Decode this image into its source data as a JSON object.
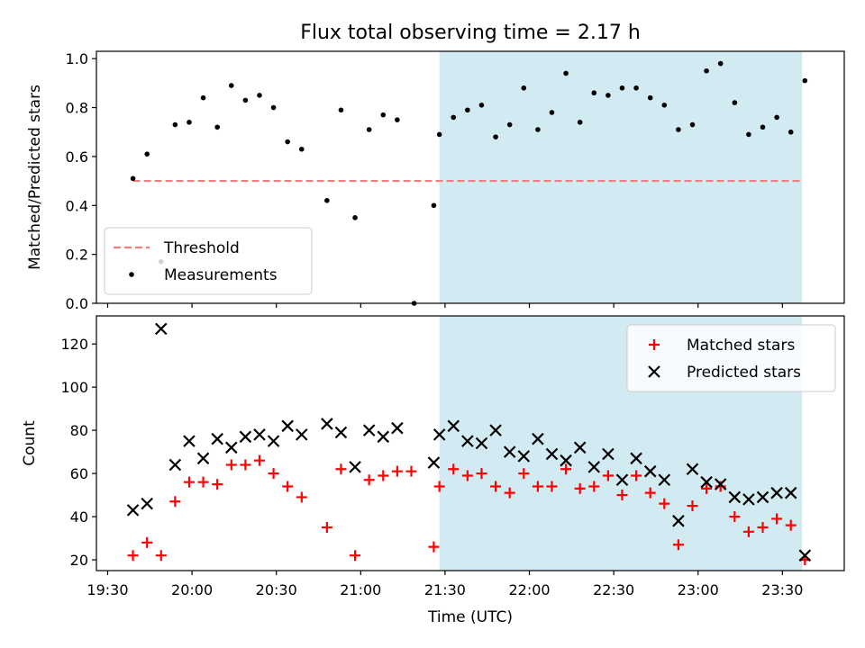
{
  "chart_data": {
    "title": "Flux total observing time = 2.17 h",
    "xlabel": "Time (UTC)",
    "x_ticks": [
      "19:30",
      "20:00",
      "20:30",
      "21:00",
      "21:30",
      "22:00",
      "22:30",
      "23:00",
      "23:30"
    ],
    "xlim": [
      "19:26",
      "23:52"
    ],
    "shaded_region": {
      "start": "21:28",
      "end": "23:37",
      "color": "#add8e6"
    },
    "panels": [
      {
        "type": "scatter",
        "ylabel": "Matched/Predicted stars",
        "ylim": [
          0,
          1.03
        ],
        "y_ticks": [
          "0.0",
          "0.2",
          "0.4",
          "0.6",
          "0.8",
          "1.0"
        ],
        "legend_position": "lower-left",
        "threshold": {
          "name": "Threshold",
          "value": 0.5,
          "x_start": "19:39",
          "x_end": "23:37",
          "color": "#f08080"
        },
        "series": [
          {
            "name": "Measurements",
            "color": "#000000",
            "marker": "dot",
            "points": [
              [
                "19:39",
                0.51
              ],
              [
                "19:44",
                0.61
              ],
              [
                "19:49",
                0.17
              ],
              [
                "19:54",
                0.73
              ],
              [
                "19:59",
                0.74
              ],
              [
                "20:04",
                0.84
              ],
              [
                "20:09",
                0.72
              ],
              [
                "20:14",
                0.89
              ],
              [
                "20:19",
                0.83
              ],
              [
                "20:24",
                0.85
              ],
              [
                "20:29",
                0.8
              ],
              [
                "20:34",
                0.66
              ],
              [
                "20:39",
                0.63
              ],
              [
                "20:48",
                0.42
              ],
              [
                "20:53",
                0.79
              ],
              [
                "20:58",
                0.35
              ],
              [
                "21:03",
                0.71
              ],
              [
                "21:08",
                0.77
              ],
              [
                "21:13",
                0.75
              ],
              [
                "21:19",
                0.0
              ],
              [
                "21:26",
                0.4
              ],
              [
                "21:28",
                0.69
              ],
              [
                "21:33",
                0.76
              ],
              [
                "21:38",
                0.79
              ],
              [
                "21:43",
                0.81
              ],
              [
                "21:48",
                0.68
              ],
              [
                "21:53",
                0.73
              ],
              [
                "21:58",
                0.88
              ],
              [
                "22:03",
                0.71
              ],
              [
                "22:08",
                0.78
              ],
              [
                "22:13",
                0.94
              ],
              [
                "22:18",
                0.74
              ],
              [
                "22:23",
                0.86
              ],
              [
                "22:28",
                0.85
              ],
              [
                "22:33",
                0.88
              ],
              [
                "22:38",
                0.88
              ],
              [
                "22:43",
                0.84
              ],
              [
                "22:48",
                0.81
              ],
              [
                "22:53",
                0.71
              ],
              [
                "22:58",
                0.73
              ],
              [
                "23:03",
                0.95
              ],
              [
                "23:08",
                0.98
              ],
              [
                "23:13",
                0.82
              ],
              [
                "23:18",
                0.69
              ],
              [
                "23:23",
                0.72
              ],
              [
                "23:28",
                0.76
              ],
              [
                "23:33",
                0.7
              ],
              [
                "23:38",
                0.91
              ]
            ]
          }
        ]
      },
      {
        "type": "scatter",
        "ylabel": "Count",
        "ylim": [
          15,
          133
        ],
        "y_ticks": [
          "20",
          "40",
          "60",
          "80",
          "100",
          "120"
        ],
        "legend_position": "upper-right",
        "series": [
          {
            "name": "Matched stars",
            "color": "#ff0000",
            "marker": "plus",
            "points": [
              [
                "19:39",
                22
              ],
              [
                "19:44",
                28
              ],
              [
                "19:49",
                22
              ],
              [
                "19:54",
                47
              ],
              [
                "19:59",
                56
              ],
              [
                "20:04",
                56
              ],
              [
                "20:09",
                55
              ],
              [
                "20:14",
                64
              ],
              [
                "20:19",
                64
              ],
              [
                "20:24",
                66
              ],
              [
                "20:29",
                60
              ],
              [
                "20:34",
                54
              ],
              [
                "20:39",
                49
              ],
              [
                "20:48",
                35
              ],
              [
                "20:53",
                62
              ],
              [
                "20:58",
                22
              ],
              [
                "21:03",
                57
              ],
              [
                "21:08",
                59
              ],
              [
                "21:13",
                61
              ],
              [
                "21:18",
                61
              ],
              [
                "21:26",
                26
              ],
              [
                "21:28",
                54
              ],
              [
                "21:33",
                62
              ],
              [
                "21:38",
                59
              ],
              [
                "21:43",
                60
              ],
              [
                "21:48",
                54
              ],
              [
                "21:53",
                51
              ],
              [
                "21:58",
                60
              ],
              [
                "22:03",
                54
              ],
              [
                "22:08",
                54
              ],
              [
                "22:13",
                62
              ],
              [
                "22:18",
                53
              ],
              [
                "22:23",
                54
              ],
              [
                "22:28",
                59
              ],
              [
                "22:33",
                50
              ],
              [
                "22:38",
                59
              ],
              [
                "22:43",
                51
              ],
              [
                "22:48",
                46
              ],
              [
                "22:53",
                27
              ],
              [
                "22:58",
                45
              ],
              [
                "23:03",
                53
              ],
              [
                "23:08",
                54
              ],
              [
                "23:13",
                40
              ],
              [
                "23:18",
                33
              ],
              [
                "23:23",
                35
              ],
              [
                "23:28",
                39
              ],
              [
                "23:33",
                36
              ],
              [
                "23:38",
                20
              ]
            ]
          },
          {
            "name": "Predicted stars",
            "color": "#000000",
            "marker": "x",
            "points": [
              [
                "19:39",
                43
              ],
              [
                "19:44",
                46
              ],
              [
                "19:49",
                127
              ],
              [
                "19:54",
                64
              ],
              [
                "19:59",
                75
              ],
              [
                "20:04",
                67
              ],
              [
                "20:09",
                76
              ],
              [
                "20:14",
                72
              ],
              [
                "20:19",
                77
              ],
              [
                "20:24",
                78
              ],
              [
                "20:29",
                75
              ],
              [
                "20:34",
                82
              ],
              [
                "20:39",
                78
              ],
              [
                "20:48",
                83
              ],
              [
                "20:53",
                79
              ],
              [
                "20:58",
                63
              ],
              [
                "21:03",
                80
              ],
              [
                "21:08",
                77
              ],
              [
                "21:13",
                81
              ],
              [
                "21:26",
                65
              ],
              [
                "21:28",
                78
              ],
              [
                "21:33",
                82
              ],
              [
                "21:38",
                75
              ],
              [
                "21:43",
                74
              ],
              [
                "21:48",
                80
              ],
              [
                "21:53",
                70
              ],
              [
                "21:58",
                68
              ],
              [
                "22:03",
                76
              ],
              [
                "22:08",
                69
              ],
              [
                "22:13",
                66
              ],
              [
                "22:18",
                72
              ],
              [
                "22:23",
                63
              ],
              [
                "22:28",
                69
              ],
              [
                "22:33",
                57
              ],
              [
                "22:38",
                67
              ],
              [
                "22:43",
                61
              ],
              [
                "22:48",
                57
              ],
              [
                "22:53",
                38
              ],
              [
                "22:58",
                62
              ],
              [
                "23:03",
                56
              ],
              [
                "23:08",
                55
              ],
              [
                "23:13",
                49
              ],
              [
                "23:18",
                48
              ],
              [
                "23:23",
                49
              ],
              [
                "23:28",
                51
              ],
              [
                "23:33",
                51
              ],
              [
                "23:38",
                22
              ]
            ]
          }
        ]
      }
    ]
  }
}
